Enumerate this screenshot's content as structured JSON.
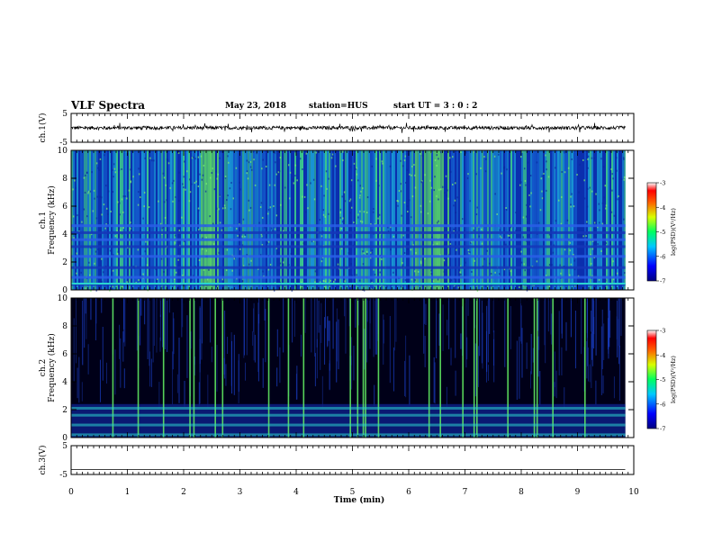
{
  "header": {
    "title": "VLF Spectra",
    "date": "May 23, 2018",
    "station": "station=HUS",
    "start_ut": "start  UT =   3 : 0  : 2"
  },
  "colors": {
    "spectrogram_bg_ch1": "#0b2fae",
    "spectrogram_bg_ch2": "#000018",
    "burst_green": "#5fe860",
    "cyan": "#2bd6d0",
    "axis": "#000000"
  },
  "chart_data": [
    {
      "id": "ch1-waveform",
      "type": "line",
      "ylabel": "ch.1(V)",
      "ylim": [
        -5,
        5
      ],
      "yticks": [
        "5",
        "-5"
      ],
      "xlim": [
        0,
        10
      ],
      "baseline": 0,
      "noise_amplitude": 0.6
    },
    {
      "id": "ch1-spectrogram",
      "type": "heatmap",
      "ylabel": "ch.1",
      "ylabel2": "Frequency (kHz)",
      "ylim": [
        0,
        10
      ],
      "yticks": [
        "0",
        "2",
        "4",
        "6",
        "8",
        "10"
      ],
      "xlim": [
        0,
        10
      ],
      "colorbar": {
        "label": "log(PSD)(V²/Hz)",
        "ticks": [
          "-3",
          "-4",
          "-5",
          "-6",
          "-7"
        ],
        "range": [
          -7,
          -3
        ]
      },
      "horizontal_bands_khz": [
        0.4,
        0.9,
        1.6,
        2.4,
        3.1,
        3.6,
        4.1,
        4.6
      ],
      "burst_regions_min": [
        [
          2.3,
          2.6
        ],
        [
          6.1,
          6.7
        ]
      ]
    },
    {
      "id": "ch2-spectrogram",
      "type": "heatmap",
      "ylabel": "ch.2",
      "ylabel2": "Frequency (kHz)",
      "ylim": [
        0,
        10
      ],
      "yticks": [
        "0",
        "2",
        "4",
        "6",
        "8",
        "10"
      ],
      "xlim": [
        0,
        10
      ],
      "colorbar": {
        "label": "log(PSD)(V²/Hz)",
        "ticks": [
          "-3",
          "-4",
          "-5",
          "-6",
          "-7"
        ],
        "range": [
          -7,
          -3
        ]
      },
      "horizontal_bands_khz": [
        0.2,
        0.9,
        1.6,
        2.1
      ],
      "strong_vertical_lines_min": [
        0.73,
        1.18,
        1.63,
        2.1,
        2.17,
        2.55,
        2.68,
        3.5,
        3.85,
        4.12,
        4.95,
        5.08,
        5.18,
        5.22,
        5.45,
        6.35,
        6.55,
        6.95,
        7.15,
        7.2,
        7.75,
        8.22,
        8.27,
        8.55,
        9.12
      ]
    },
    {
      "id": "ch3-waveform",
      "type": "line",
      "ylabel": "ch.3(V)",
      "ylim": [
        -5,
        5
      ],
      "yticks": [
        "5",
        "-5"
      ],
      "xlim": [
        0,
        10
      ],
      "baseline": -3.3,
      "noise_amplitude": 0
    }
  ],
  "xaxis": {
    "label": "Time  (min)",
    "ticks": [
      "0",
      "1",
      "2",
      "3",
      "4",
      "5",
      "6",
      "7",
      "8",
      "9",
      "10"
    ],
    "data_end_min": 9.85
  }
}
